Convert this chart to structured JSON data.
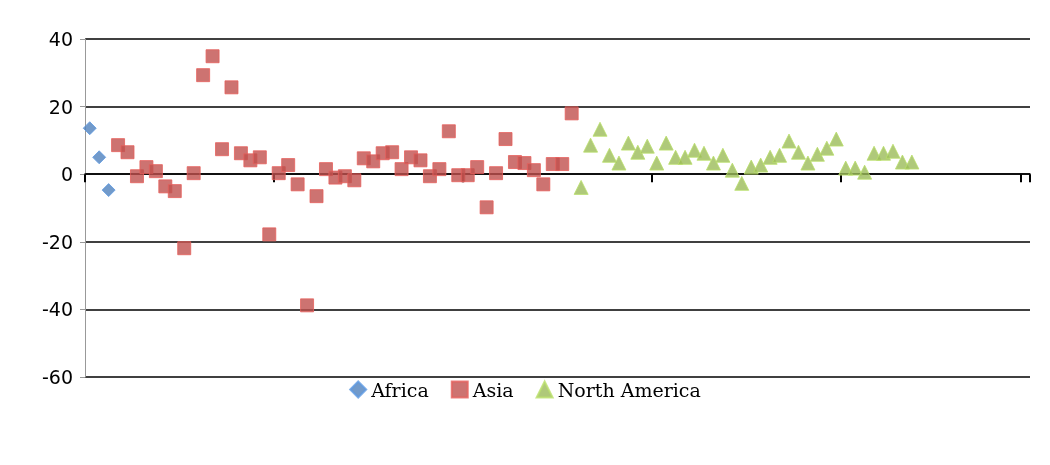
{
  "chart_data": {
    "type": "scatter",
    "categories": [
      null,
      null,
      null,
      null,
      null,
      null,
      null,
      null,
      null,
      null,
      null,
      null,
      null,
      null,
      null,
      null,
      null,
      null,
      null,
      null,
      null,
      null,
      null,
      null,
      null,
      null,
      null,
      null,
      null,
      null,
      null,
      null,
      null,
      null,
      null,
      null,
      null,
      null,
      null,
      null,
      null,
      null,
      null,
      null,
      null,
      null,
      null,
      null,
      null,
      null,
      null,
      null,
      null,
      null,
      null,
      null,
      null,
      null,
      null,
      null,
      null,
      null,
      null,
      null,
      null,
      null,
      null,
      null,
      null,
      null,
      null,
      null,
      null,
      null,
      null,
      null,
      null,
      null,
      null,
      null,
      null,
      null,
      null,
      null,
      null,
      null,
      null,
      null,
      null,
      null,
      null,
      null,
      null,
      null,
      null,
      null,
      null,
      null,
      null,
      null
    ],
    "ylim": [
      -60,
      40
    ],
    "yticks": [
      -60,
      -40,
      -20,
      0,
      20,
      40
    ],
    "grid": "y",
    "legend": "bottom",
    "tick_labels": "y",
    "series": [
      {
        "name": "Africa",
        "color": "#4f81bd",
        "marker": "diamond",
        "values": [
          13.6,
          5,
          -4.7,
          null,
          null,
          null,
          null,
          null,
          null,
          null,
          null,
          null,
          null,
          null,
          null,
          null,
          null,
          null,
          null,
          null,
          null,
          null,
          null,
          null,
          null,
          null,
          null,
          null,
          null,
          null,
          null,
          null,
          null,
          null,
          null,
          null,
          null,
          null,
          null,
          null,
          null,
          null,
          null,
          null,
          null,
          null,
          null,
          null,
          null,
          null,
          null,
          null,
          null,
          null,
          null,
          null,
          null,
          null,
          null,
          null,
          null,
          null,
          null,
          null,
          null,
          null,
          null,
          null,
          null,
          null,
          null,
          null,
          null,
          null,
          null,
          null,
          null,
          null,
          null,
          null,
          null,
          null,
          null,
          null,
          null,
          null,
          null,
          null,
          null,
          null,
          null,
          null,
          null,
          null,
          null,
          null,
          null,
          null,
          null,
          null
        ]
      },
      {
        "name": "Asia",
        "color": "#c0504d",
        "marker": "square",
        "values": [
          null,
          null,
          null,
          8.6,
          6.5,
          -0.6,
          2.1,
          0.9,
          -3.6,
          -5,
          -21.9,
          0.3,
          29.3,
          34.9,
          7.4,
          25.7,
          6.2,
          4.1,
          5,
          -17.8,
          0.3,
          2.7,
          -3,
          -38.8,
          -6.5,
          1.5,
          -1,
          -0.6,
          -1.8,
          4.7,
          3.8,
          6.2,
          6.5,
          1.5,
          5,
          4.1,
          -0.6,
          1.5,
          12.7,
          -0.3,
          -0.3,
          2.1,
          -9.8,
          0.3,
          10.4,
          3.6,
          3.3,
          1.2,
          -3,
          3,
          3,
          18,
          null,
          null,
          null,
          null,
          null,
          null,
          null,
          null,
          null,
          null,
          null,
          null,
          null,
          null,
          null,
          null,
          null,
          null,
          null,
          null,
          null,
          null,
          null,
          null,
          null,
          null,
          null,
          null,
          null,
          null,
          null,
          null,
          null,
          null,
          null,
          null,
          null,
          null,
          null,
          null,
          null,
          null,
          null,
          null,
          null,
          null,
          null,
          null
        ]
      },
      {
        "name": "North America",
        "color": "#9bbb59",
        "marker": "triangle",
        "values": [
          null,
          null,
          null,
          null,
          null,
          null,
          null,
          null,
          null,
          null,
          null,
          null,
          null,
          null,
          null,
          null,
          null,
          null,
          null,
          null,
          null,
          null,
          null,
          null,
          null,
          null,
          null,
          null,
          null,
          null,
          null,
          null,
          null,
          null,
          null,
          null,
          null,
          null,
          null,
          null,
          null,
          null,
          null,
          null,
          null,
          null,
          null,
          null,
          null,
          null,
          null,
          null,
          -3.9,
          8.6,
          13.3,
          5.6,
          3.3,
          9.2,
          6.5,
          8.3,
          3.3,
          9.2,
          5,
          5,
          7.1,
          6.2,
          3.3,
          5.6,
          1.2,
          -2.7,
          2.1,
          2.7,
          5,
          5.6,
          9.8,
          6.5,
          3.3,
          5.9,
          7.7,
          10.4,
          1.8,
          1.8,
          0.6,
          6.2,
          6.2,
          6.8,
          3.6,
          3.6,
          null,
          null,
          null,
          null,
          null,
          null,
          null,
          null,
          null,
          null,
          null,
          null
        ]
      }
    ]
  }
}
